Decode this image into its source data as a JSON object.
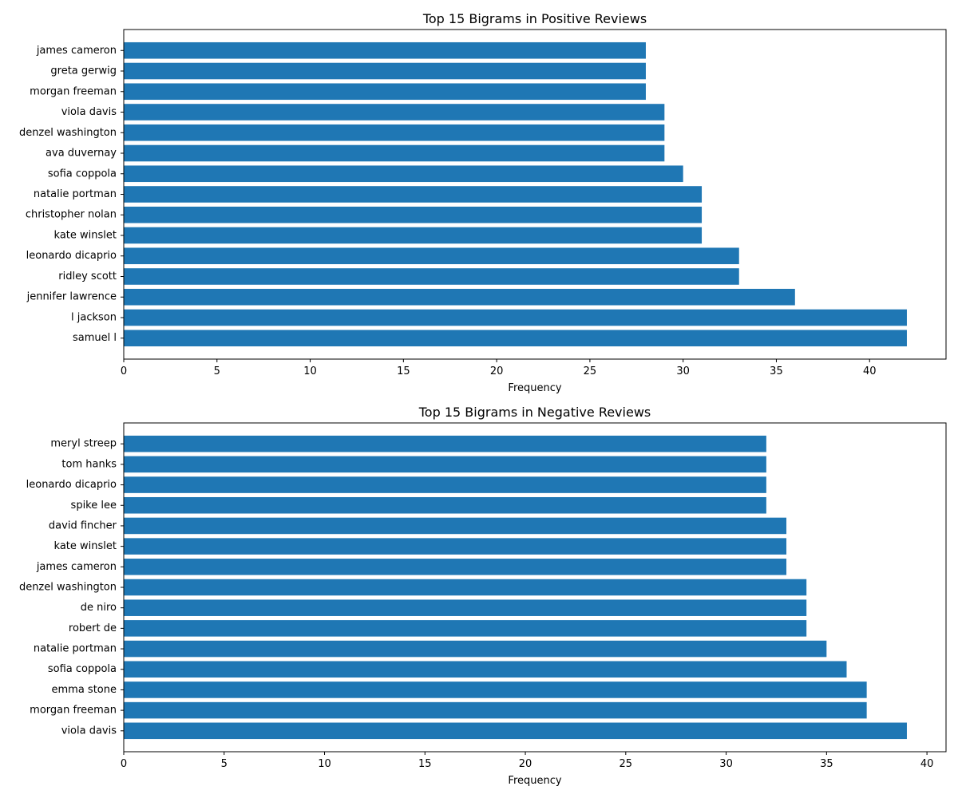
{
  "bar_color": "#1f77b4",
  "chart_data": [
    {
      "type": "bar",
      "orientation": "horizontal",
      "title": "Top 15 Bigrams in Positive Reviews",
      "xlabel": "Frequency",
      "ylabel": "",
      "xlim": [
        0,
        44.1
      ],
      "xticks": [
        0,
        5,
        10,
        15,
        20,
        25,
        30,
        35,
        40
      ],
      "grid": false,
      "categories": [
        "samuel l",
        "l jackson",
        "jennifer lawrence",
        "ridley scott",
        "leonardo dicaprio",
        "kate winslet",
        "christopher nolan",
        "natalie portman",
        "sofia coppola",
        "ava duvernay",
        "denzel washington",
        "viola davis",
        "morgan freeman",
        "greta gerwig",
        "james cameron"
      ],
      "values": [
        42,
        42,
        36,
        33,
        33,
        31,
        31,
        31,
        30,
        29,
        29,
        29,
        28,
        28,
        28
      ]
    },
    {
      "type": "bar",
      "orientation": "horizontal",
      "title": "Top 15 Bigrams in Negative Reviews",
      "xlabel": "Frequency",
      "ylabel": "",
      "xlim": [
        0,
        40.95
      ],
      "xticks": [
        0,
        5,
        10,
        15,
        20,
        25,
        30,
        35,
        40
      ],
      "grid": false,
      "categories": [
        "viola davis",
        "morgan freeman",
        "emma stone",
        "sofia coppola",
        "natalie portman",
        "robert de",
        "de niro",
        "denzel washington",
        "james cameron",
        "kate winslet",
        "david fincher",
        "spike lee",
        "leonardo dicaprio",
        "tom hanks",
        "meryl streep"
      ],
      "values": [
        39,
        37,
        37,
        36,
        35,
        34,
        34,
        34,
        33,
        33,
        33,
        32,
        32,
        32,
        32
      ]
    }
  ]
}
